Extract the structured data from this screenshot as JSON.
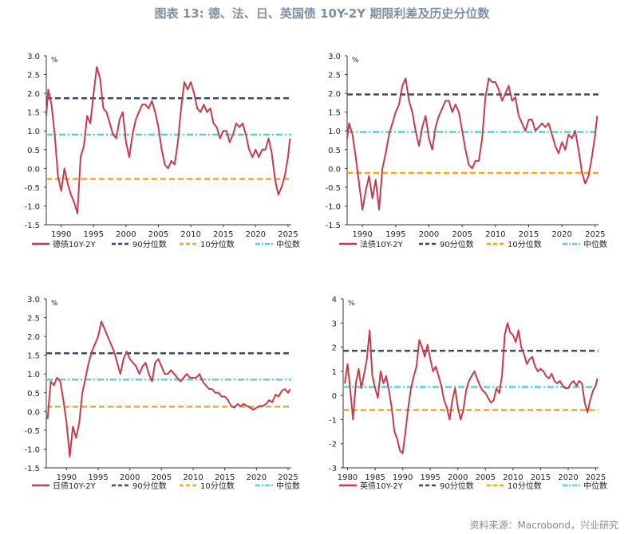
{
  "title": "图表 13: 德、法、日、英国债 10Y-2Y 期限利差及历史分位数",
  "source": "资料来源：Macrobond，兴业研究",
  "colors": {
    "series": "#c73b4b",
    "p90": "#3b4a6b",
    "p10": "#f5a623",
    "median": "#5fd0d0",
    "axis": "#333333"
  },
  "chart_data": [
    {
      "type": "line",
      "unit": "%",
      "y_ticks": [
        "3.0",
        "2.5",
        "2.0",
        "1.5",
        "1.0",
        "0.5",
        "0.0",
        "-0.5",
        "-1.0",
        "-1.5"
      ],
      "ylim": [
        -1.5,
        3.0
      ],
      "x_ticks": [
        "1990",
        "1995",
        "2000",
        "2005",
        "2010",
        "2015",
        "2020",
        "2025"
      ],
      "xlim": [
        1987.7,
        2025.5
      ],
      "legend": [
        "德债10Y-2Y",
        "90分位数",
        "10分位数",
        "中位数"
      ],
      "reference_lines": {
        "p90": 1.87,
        "p10": -0.28,
        "median": 0.9
      },
      "x": [
        1987.7,
        1988.0,
        1988.5,
        1989.0,
        1989.5,
        1990.0,
        1990.5,
        1991.0,
        1991.5,
        1992.0,
        1992.5,
        1993.0,
        1993.5,
        1994.0,
        1994.5,
        1995.0,
        1995.5,
        1996.0,
        1996.5,
        1997.0,
        1997.5,
        1998.0,
        1998.5,
        1999.0,
        1999.5,
        2000.0,
        2000.5,
        2001.0,
        2001.5,
        2002.0,
        2002.5,
        2003.0,
        2003.5,
        2004.0,
        2004.5,
        2005.0,
        2005.5,
        2006.0,
        2006.5,
        2007.0,
        2007.5,
        2008.0,
        2008.5,
        2009.0,
        2009.5,
        2010.0,
        2010.5,
        2011.0,
        2011.5,
        2012.0,
        2012.5,
        2013.0,
        2013.5,
        2014.0,
        2014.5,
        2015.0,
        2015.5,
        2016.0,
        2016.5,
        2017.0,
        2017.5,
        2018.0,
        2018.5,
        2019.0,
        2019.5,
        2020.0,
        2020.5,
        2021.0,
        2021.5,
        2022.0,
        2022.5,
        2023.0,
        2023.5,
        2024.0,
        2024.5,
        2025.0,
        2025.3
      ],
      "y": [
        1.4,
        2.1,
        1.7,
        0.9,
        -0.2,
        -0.6,
        0.0,
        -0.4,
        -0.7,
        -0.9,
        -1.2,
        0.3,
        0.6,
        1.4,
        1.2,
        2.0,
        2.7,
        2.4,
        1.6,
        1.5,
        1.2,
        0.9,
        0.8,
        1.3,
        1.5,
        0.7,
        0.3,
        0.9,
        1.3,
        1.5,
        1.7,
        1.7,
        1.6,
        1.8,
        1.5,
        1.1,
        0.5,
        0.1,
        0.0,
        0.2,
        0.1,
        0.7,
        1.6,
        2.3,
        2.1,
        2.3,
        2.0,
        1.6,
        1.5,
        1.7,
        1.5,
        1.6,
        1.2,
        1.1,
        0.8,
        1.0,
        1.0,
        0.7,
        0.9,
        1.2,
        1.1,
        1.2,
        0.9,
        0.5,
        0.3,
        0.5,
        0.3,
        0.5,
        0.5,
        0.8,
        0.4,
        -0.3,
        -0.7,
        -0.5,
        -0.2,
        0.3,
        0.8
      ]
    },
    {
      "type": "line",
      "unit": "%",
      "y_ticks": [
        "3.0",
        "2.5",
        "2.0",
        "1.5",
        "1.0",
        "0.5",
        "0.0",
        "-0.5",
        "-1.0",
        "-1.5"
      ],
      "ylim": [
        -1.5,
        3.0
      ],
      "x_ticks": [
        "1990",
        "1995",
        "2000",
        "2005",
        "2010",
        "2015",
        "2020",
        "2025"
      ],
      "xlim": [
        1987.7,
        2025.5
      ],
      "legend": [
        "法债10Y-2Y",
        "90分位数",
        "10分位数",
        "中位数"
      ],
      "reference_lines": {
        "p90": 1.97,
        "p10": -0.12,
        "median": 0.97
      },
      "x": [
        1987.7,
        1988.0,
        1988.5,
        1989.0,
        1989.5,
        1990.0,
        1990.5,
        1991.0,
        1991.5,
        1992.0,
        1992.5,
        1993.0,
        1993.5,
        1994.0,
        1994.5,
        1995.0,
        1995.5,
        1996.0,
        1996.5,
        1997.0,
        1997.5,
        1998.0,
        1998.5,
        1999.0,
        1999.5,
        2000.0,
        2000.5,
        2001.0,
        2001.5,
        2002.0,
        2002.5,
        2003.0,
        2003.5,
        2004.0,
        2004.5,
        2005.0,
        2005.5,
        2006.0,
        2006.5,
        2007.0,
        2007.5,
        2008.0,
        2008.5,
        2009.0,
        2009.5,
        2010.0,
        2010.5,
        2011.0,
        2011.5,
        2012.0,
        2012.5,
        2013.0,
        2013.5,
        2014.0,
        2014.5,
        2015.0,
        2015.5,
        2016.0,
        2016.5,
        2017.0,
        2017.5,
        2018.0,
        2018.5,
        2019.0,
        2019.5,
        2020.0,
        2020.5,
        2021.0,
        2021.5,
        2022.0,
        2022.5,
        2023.0,
        2023.5,
        2024.0,
        2024.5,
        2025.0,
        2025.3
      ],
      "y": [
        0.8,
        1.2,
        0.9,
        0.3,
        -0.4,
        -1.1,
        -0.6,
        -0.2,
        -0.8,
        -0.3,
        -1.1,
        0.0,
        0.4,
        0.9,
        1.2,
        1.5,
        1.7,
        2.2,
        2.4,
        1.8,
        1.5,
        1.0,
        0.6,
        1.1,
        1.4,
        0.8,
        0.5,
        1.1,
        1.4,
        1.6,
        1.8,
        1.8,
        1.5,
        1.7,
        1.5,
        1.0,
        0.5,
        0.1,
        0.0,
        0.2,
        0.2,
        0.8,
        1.9,
        2.4,
        2.3,
        2.3,
        2.1,
        1.8,
        2.0,
        2.2,
        1.8,
        1.9,
        1.4,
        1.2,
        1.0,
        1.3,
        1.3,
        1.0,
        1.1,
        1.2,
        1.1,
        1.2,
        0.9,
        0.6,
        0.4,
        0.7,
        0.5,
        0.9,
        0.8,
        1.0,
        0.5,
        -0.1,
        -0.4,
        -0.2,
        0.3,
        0.9,
        1.4
      ]
    },
    {
      "type": "line",
      "unit": "%",
      "y_ticks": [
        "3.0",
        "2.5",
        "2.0",
        "1.5",
        "1.0",
        "0.5",
        "0.0",
        "-0.5",
        "-1.0",
        "-1.5"
      ],
      "ylim": [
        -1.5,
        3.0
      ],
      "x_ticks": [
        "1990",
        "1995",
        "2000",
        "2005",
        "2010",
        "2015",
        "2020",
        "2025"
      ],
      "xlim": [
        1986.8,
        2025.5
      ],
      "legend": [
        "日债10Y-2Y",
        "90分位数",
        "10分位数",
        "中位数"
      ],
      "reference_lines": {
        "p90": 1.55,
        "p10": 0.13,
        "median": 0.85
      },
      "x": [
        1987.0,
        1987.5,
        1988.0,
        1988.5,
        1989.0,
        1989.5,
        1990.0,
        1990.5,
        1991.0,
        1991.5,
        1992.0,
        1992.5,
        1993.0,
        1993.5,
        1994.0,
        1994.5,
        1995.0,
        1995.5,
        1996.0,
        1996.5,
        1997.0,
        1997.5,
        1998.0,
        1998.5,
        1999.0,
        1999.5,
        2000.0,
        2000.5,
        2001.0,
        2001.5,
        2002.0,
        2002.5,
        2003.0,
        2003.5,
        2004.0,
        2004.5,
        2005.0,
        2005.5,
        2006.0,
        2006.5,
        2007.0,
        2007.5,
        2008.0,
        2008.5,
        2009.0,
        2009.5,
        2010.0,
        2010.5,
        2011.0,
        2011.5,
        2012.0,
        2012.5,
        2013.0,
        2013.5,
        2014.0,
        2014.5,
        2015.0,
        2015.5,
        2016.0,
        2016.5,
        2017.0,
        2017.5,
        2018.0,
        2018.5,
        2019.0,
        2019.5,
        2020.0,
        2020.5,
        2021.0,
        2021.5,
        2022.0,
        2022.5,
        2023.0,
        2023.5,
        2024.0,
        2024.5,
        2025.0,
        2025.3
      ],
      "y": [
        -0.2,
        0.8,
        0.7,
        0.9,
        0.8,
        0.3,
        -0.3,
        -1.2,
        -0.4,
        -0.7,
        -0.3,
        0.5,
        0.9,
        1.3,
        1.6,
        1.8,
        2.0,
        2.4,
        2.2,
        2.0,
        1.8,
        1.6,
        1.3,
        1.0,
        1.4,
        1.6,
        1.4,
        1.3,
        1.2,
        1.0,
        1.2,
        1.3,
        1.0,
        0.8,
        1.3,
        1.4,
        1.2,
        1.0,
        1.0,
        1.1,
        1.0,
        0.9,
        0.8,
        0.9,
        1.0,
        0.9,
        0.9,
        0.9,
        1.0,
        0.8,
        0.7,
        0.6,
        0.6,
        0.5,
        0.5,
        0.4,
        0.4,
        0.3,
        0.15,
        0.1,
        0.2,
        0.15,
        0.2,
        0.15,
        0.1,
        0.05,
        0.1,
        0.15,
        0.15,
        0.2,
        0.3,
        0.25,
        0.45,
        0.4,
        0.55,
        0.6,
        0.5,
        0.6
      ]
    },
    {
      "type": "line",
      "unit": "%",
      "y_ticks": [
        "4",
        "3",
        "2",
        "1",
        "0",
        "-1",
        "-2",
        "-3"
      ],
      "ylim": [
        -3,
        4
      ],
      "x_ticks": [
        "1980",
        "1985",
        "1990",
        "1995",
        "2000",
        "2005",
        "2010",
        "2015",
        "2020",
        "2025"
      ],
      "xlim": [
        1979.2,
        2025.5
      ],
      "legend": [
        "英债10Y-2Y",
        "90分位数",
        "10分位数",
        "中位数"
      ],
      "reference_lines": {
        "p90": 1.85,
        "p10": -0.6,
        "median": 0.35
      },
      "x": [
        1979.5,
        1980.0,
        1980.5,
        1981.0,
        1981.5,
        1982.0,
        1982.5,
        1983.0,
        1983.5,
        1984.0,
        1984.5,
        1985.0,
        1985.5,
        1986.0,
        1986.5,
        1987.0,
        1987.5,
        1988.0,
        1988.5,
        1989.0,
        1989.5,
        1990.0,
        1990.5,
        1991.0,
        1991.5,
        1992.0,
        1992.5,
        1993.0,
        1993.5,
        1994.0,
        1994.5,
        1995.0,
        1995.5,
        1996.0,
        1996.5,
        1997.0,
        1997.5,
        1998.0,
        1998.5,
        1999.0,
        1999.5,
        2000.0,
        2000.5,
        2001.0,
        2001.5,
        2002.0,
        2002.5,
        2003.0,
        2003.5,
        2004.0,
        2004.5,
        2005.0,
        2005.5,
        2006.0,
        2006.5,
        2007.0,
        2007.5,
        2008.0,
        2008.5,
        2009.0,
        2009.5,
        2010.0,
        2010.5,
        2011.0,
        2011.5,
        2012.0,
        2012.5,
        2013.0,
        2013.5,
        2014.0,
        2014.5,
        2015.0,
        2015.5,
        2016.0,
        2016.5,
        2017.0,
        2017.5,
        2018.0,
        2018.5,
        2019.0,
        2019.5,
        2020.0,
        2020.5,
        2021.0,
        2021.5,
        2022.0,
        2022.5,
        2023.0,
        2023.5,
        2024.0,
        2024.5,
        2025.0,
        2025.3
      ],
      "y": [
        0.5,
        1.3,
        0.2,
        -1.0,
        0.5,
        1.1,
        0.3,
        0.9,
        1.5,
        2.7,
        0.8,
        0.3,
        -0.1,
        1.0,
        0.5,
        0.8,
        0.2,
        -0.5,
        -1.5,
        -1.8,
        -2.3,
        -2.4,
        -1.5,
        -0.5,
        0.3,
        0.8,
        1.2,
        2.3,
        2.0,
        1.6,
        2.1,
        1.5,
        1.0,
        1.2,
        0.8,
        0.4,
        -0.2,
        -0.5,
        -1.0,
        -0.2,
        0.3,
        -0.5,
        -1.0,
        -0.6,
        0.2,
        0.6,
        0.8,
        1.0,
        0.7,
        0.4,
        0.2,
        0.1,
        -0.1,
        -0.3,
        -0.2,
        0.3,
        0.1,
        0.8,
        2.5,
        3.0,
        2.6,
        2.5,
        2.2,
        2.7,
        2.0,
        1.7,
        1.3,
        1.5,
        1.6,
        1.2,
        1.0,
        1.1,
        1.0,
        0.8,
        0.7,
        0.9,
        0.6,
        0.5,
        0.6,
        0.4,
        0.3,
        0.3,
        0.5,
        0.6,
        0.4,
        0.6,
        0.5,
        -0.3,
        -0.7,
        -0.2,
        0.2,
        0.4,
        0.7
      ]
    }
  ]
}
